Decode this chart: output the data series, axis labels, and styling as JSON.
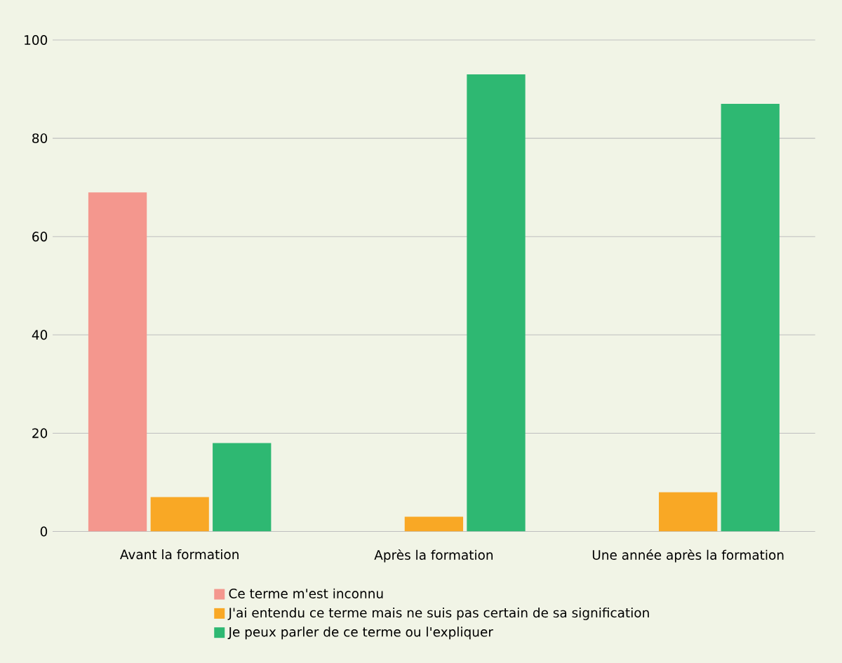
{
  "chart_data": {
    "type": "bar",
    "categories": [
      "Avant la formation",
      "Après la formation",
      "Une année après la formation"
    ],
    "series": [
      {
        "name": "Ce terme m'est inconnu",
        "color": "#f4978e",
        "values": [
          69,
          0,
          0
        ]
      },
      {
        "name": "J'ai entendu ce terme mais ne suis pas certain de sa signification",
        "color": "#f9a825",
        "values": [
          7,
          3,
          8
        ]
      },
      {
        "name": "Je peux parler de ce terme ou l'expliquer",
        "color": "#2eb872",
        "values": [
          18,
          93,
          87
        ]
      }
    ],
    "ylim": [
      0,
      100
    ],
    "yticks": [
      0,
      20,
      40,
      60,
      80,
      100
    ],
    "grid": "y",
    "legend": "bottom"
  }
}
